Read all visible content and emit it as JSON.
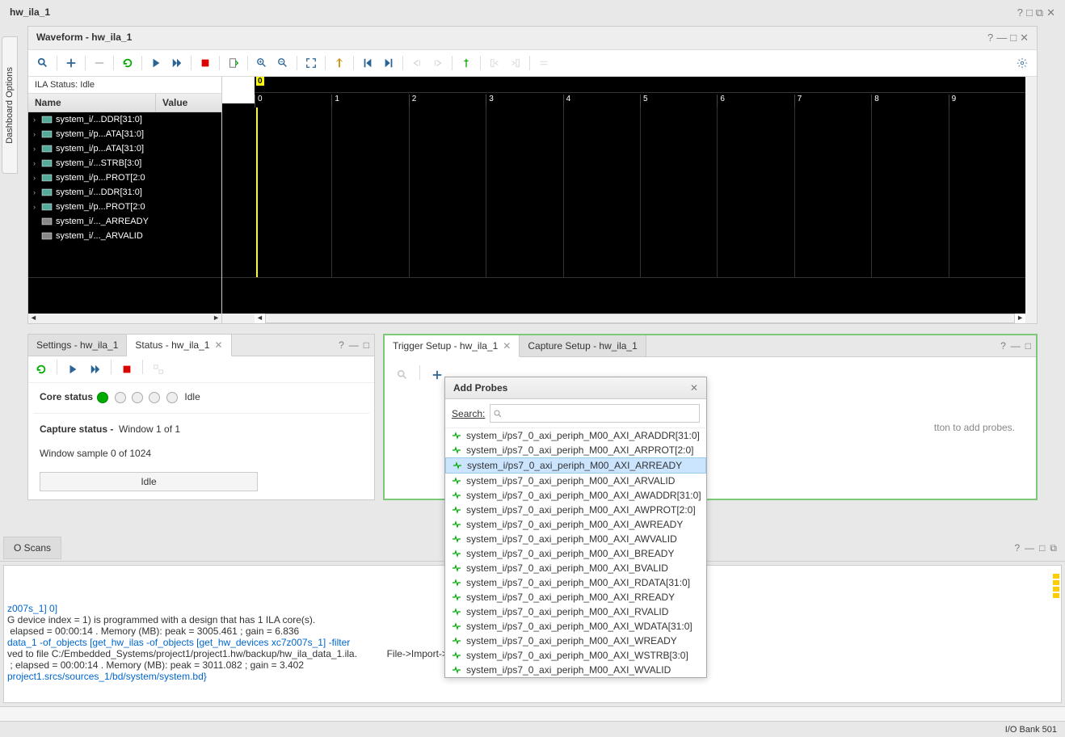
{
  "outer_title": "hw_ila_1",
  "sidebar_tab": "Dashboard Options",
  "waveform": {
    "title": "Waveform - hw_ila_1",
    "ila_status_label": "ILA Status:",
    "ila_status_value": "Idle",
    "col_name": "Name",
    "col_value": "Value",
    "marker": "0",
    "ticks": [
      "0",
      "1",
      "2",
      "3",
      "4",
      "5",
      "6",
      "7",
      "8",
      "9"
    ],
    "signals": [
      {
        "name": "system_i/...DDR[31:0]",
        "expandable": true,
        "type": "bus"
      },
      {
        "name": "system_i/p...ATA[31:0]",
        "expandable": true,
        "type": "bus"
      },
      {
        "name": "system_i/p...ATA[31:0]",
        "expandable": true,
        "type": "bus"
      },
      {
        "name": "system_i/...STRB[3:0]",
        "expandable": true,
        "type": "bus"
      },
      {
        "name": "system_i/p...PROT[2:0",
        "expandable": true,
        "type": "bus"
      },
      {
        "name": "system_i/...DDR[31:0]",
        "expandable": true,
        "type": "bus"
      },
      {
        "name": "system_i/p...PROT[2:0",
        "expandable": true,
        "type": "bus"
      },
      {
        "name": "system_i/..._ARREADY",
        "expandable": false,
        "type": "bit"
      },
      {
        "name": "system_i/..._ARVALID",
        "expandable": false,
        "type": "bit"
      }
    ]
  },
  "settings": {
    "tab1": "Settings - hw_ila_1",
    "tab2": "Status - hw_ila_1",
    "core_status_label": "Core status",
    "core_status_value": "Idle",
    "capture_status_label": "Capture status -",
    "capture_status_value": "Window 1 of 1",
    "window_sample": "Window sample 0 of 1024",
    "idle_button": "Idle"
  },
  "trigger": {
    "tab1": "Trigger Setup - hw_ila_1",
    "tab2": "Capture Setup - hw_ila_1",
    "hint": "tton to add probes."
  },
  "probes": {
    "title": "Add Probes",
    "search_label": "Search:",
    "search_placeholder": "",
    "selected_index": 2,
    "items": [
      "system_i/ps7_0_axi_periph_M00_AXI_ARADDR[31:0]",
      "system_i/ps7_0_axi_periph_M00_AXI_ARPROT[2:0]",
      "system_i/ps7_0_axi_periph_M00_AXI_ARREADY",
      "system_i/ps7_0_axi_periph_M00_AXI_ARVALID",
      "system_i/ps7_0_axi_periph_M00_AXI_AWADDR[31:0]",
      "system_i/ps7_0_axi_periph_M00_AXI_AWPROT[2:0]",
      "system_i/ps7_0_axi_periph_M00_AXI_AWREADY",
      "system_i/ps7_0_axi_periph_M00_AXI_AWVALID",
      "system_i/ps7_0_axi_periph_M00_AXI_BREADY",
      "system_i/ps7_0_axi_periph_M00_AXI_BVALID",
      "system_i/ps7_0_axi_periph_M00_AXI_RDATA[31:0]",
      "system_i/ps7_0_axi_periph_M00_AXI_RREADY",
      "system_i/ps7_0_axi_periph_M00_AXI_RVALID",
      "system_i/ps7_0_axi_periph_M00_AXI_WDATA[31:0]",
      "system_i/ps7_0_axi_periph_M00_AXI_WREADY",
      "system_i/ps7_0_axi_periph_M00_AXI_WSTRB[3:0]",
      "system_i/ps7_0_axi_periph_M00_AXI_WVALID"
    ]
  },
  "console": {
    "tab": "O Scans",
    "lines": [
      {
        "cls": "blue",
        "text": "z007s_1] 0]"
      },
      {
        "cls": "",
        "text": "G device index = 1) is programmed with a design that has 1 ILA core(s)."
      },
      {
        "cls": "",
        "text": " elapsed = 00:00:14 . Memory (MB): peak = 3005.461 ; gain = 6.836"
      },
      {
        "cls": "blue",
        "text": "data_1 -of_objects [get_hw_ilas -of_objects [get_hw_devices xc7z007s_1] -filter"
      },
      {
        "cls": "",
        "text": "ved to file C:/Embedded_Systems/project1/project1.hw/backup/hw_ila_data_1.ila.           File->Import->Import ILA Data menu item to import the prev"
      },
      {
        "cls": "",
        "text": " ; elapsed = 00:00:14 . Memory (MB): peak = 3011.082 ; gain = 3.402"
      },
      {
        "cls": "blue",
        "text": "project1.srcs/sources_1/bd/system/system.bd}"
      }
    ]
  },
  "footer": "I/O Bank 501",
  "colors": {
    "accent_green": "#7cc97c",
    "waveform_bg": "#000000",
    "marker_yellow": "#ffff00"
  }
}
